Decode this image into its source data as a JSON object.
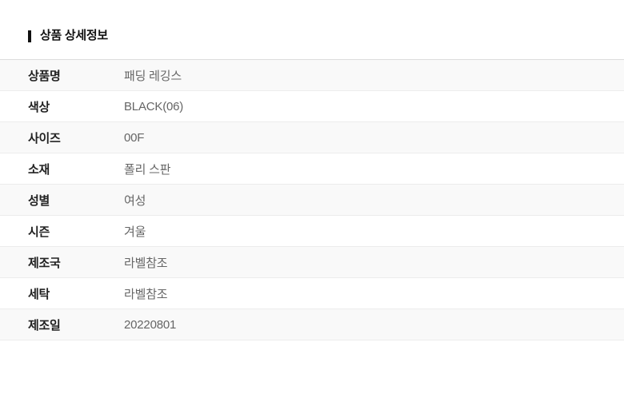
{
  "page": {
    "section_title": "상품 상세정보"
  },
  "table": {
    "rows": [
      {
        "label": "상품명",
        "value": "패딩 레깅스"
      },
      {
        "label": "색상",
        "value": "BLACK(06)"
      },
      {
        "label": "사이즈",
        "value": "00F"
      },
      {
        "label": "소재",
        "value": "폴리 스판"
      },
      {
        "label": "성별",
        "value": "여성"
      },
      {
        "label": "시즌",
        "value": "겨울"
      },
      {
        "label": "제조국",
        "value": "라벨참조"
      },
      {
        "label": "세탁",
        "value": "라벨참조"
      },
      {
        "label": "제조일",
        "value": "20220801"
      }
    ]
  },
  "colors": {
    "title_text": "#111111",
    "title_marker": "#111111",
    "label_text": "#222222",
    "value_text": "#666666",
    "row_stripe": "#f9f9f9",
    "row_border": "#ececec",
    "table_top_border": "#dddddd"
  }
}
